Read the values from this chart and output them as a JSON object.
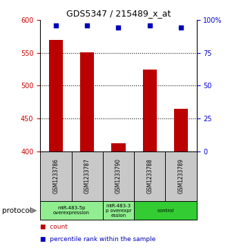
{
  "title": "GDS5347 / 215489_x_at",
  "samples": [
    "GSM1233786",
    "GSM1233787",
    "GSM1233790",
    "GSM1233788",
    "GSM1233789"
  ],
  "count_values": [
    570,
    551,
    412,
    525,
    465
  ],
  "percentile_values": [
    96,
    96,
    94,
    96,
    94
  ],
  "ylim_left": [
    400,
    600
  ],
  "ylim_right": [
    0,
    100
  ],
  "yticks_left": [
    400,
    450,
    500,
    550,
    600
  ],
  "yticks_right": [
    0,
    25,
    50,
    75,
    100
  ],
  "ytick_labels_right": [
    "0",
    "25",
    "50",
    "75",
    "100%"
  ],
  "bar_color": "#bb0000",
  "dot_color": "#0000bb",
  "bg_color": "#ffffff",
  "groups": [
    {
      "start": 0,
      "end": 1,
      "label": "miR-483-5p\noverexpression",
      "color": "#90ee90"
    },
    {
      "start": 2,
      "end": 2,
      "label": "miR-483-3\np overexpr\nession",
      "color": "#90ee90"
    },
    {
      "start": 3,
      "end": 4,
      "label": "control",
      "color": "#33cc33"
    }
  ],
  "protocol_label": "protocol",
  "legend_count_label": "count",
  "legend_percentile_label": "percentile rank within the sample",
  "left_tick_color": "#cc0000",
  "right_tick_color": "#0000cc",
  "sample_cell_color": "#c8c8c8",
  "n_samples": 5
}
